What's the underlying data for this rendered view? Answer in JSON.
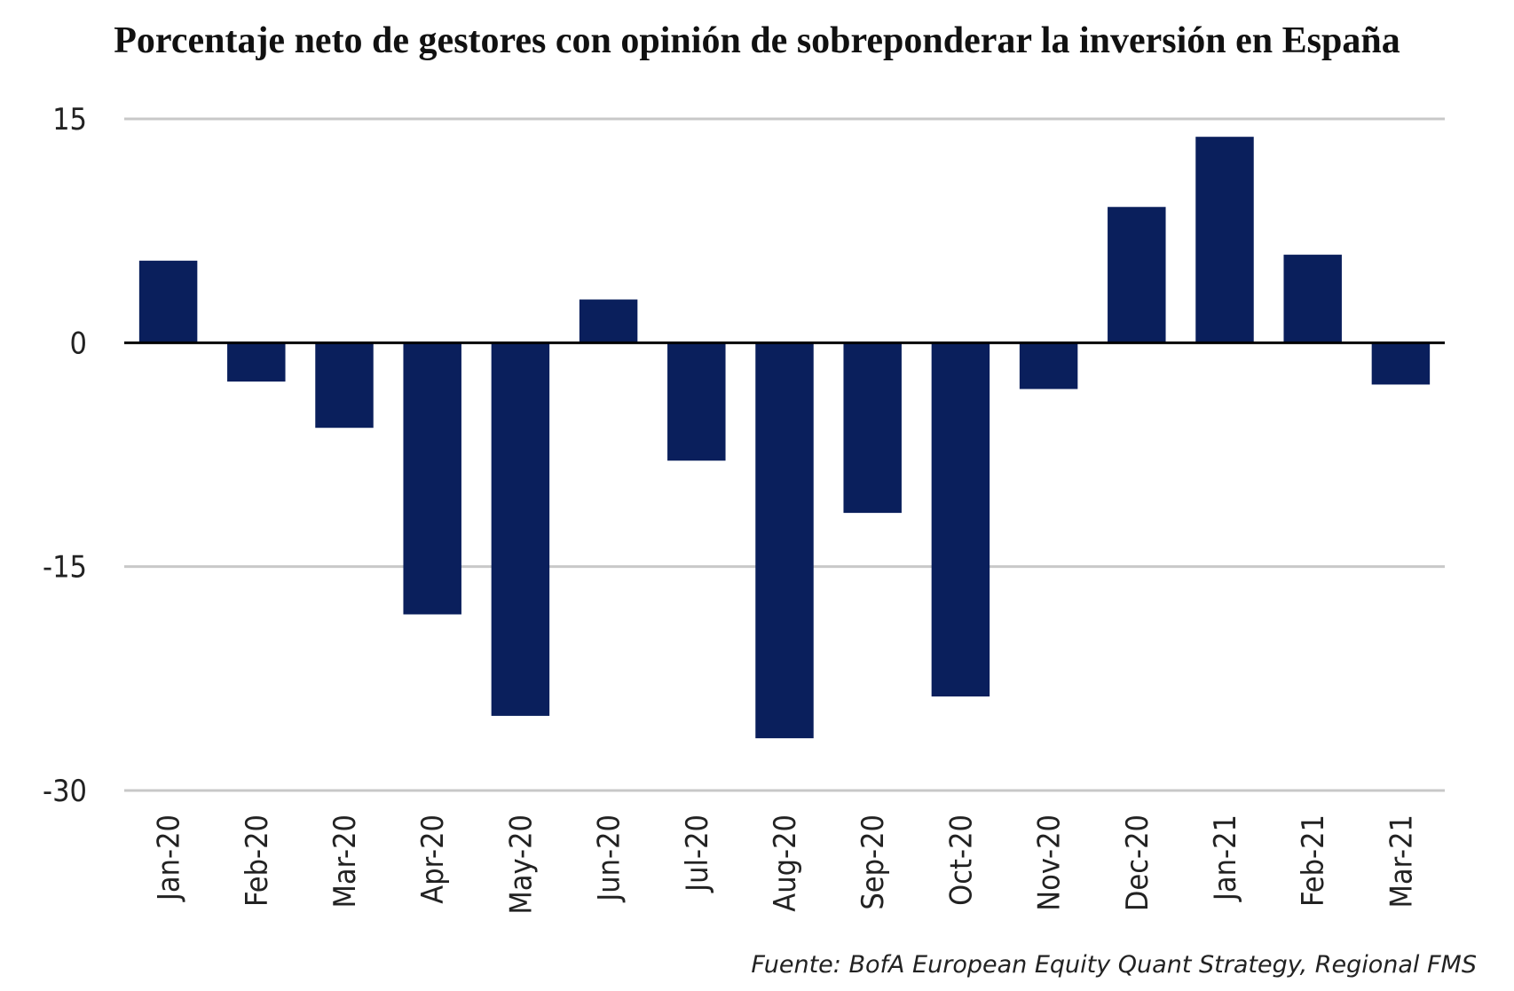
{
  "chart_data": {
    "type": "bar",
    "title": "Porcentaje neto de gestores con opinión de sobreponderar la inversión en España",
    "categories": [
      "Jan-20",
      "Feb-20",
      "Mar-20",
      "Apr-20",
      "May-20",
      "Jun-20",
      "Jul-20",
      "Aug-20",
      "Sep-20",
      "Oct-20",
      "Nov-20",
      "Dec-20",
      "Jan-21",
      "Feb-21",
      "Mar-21"
    ],
    "values": [
      5.5,
      -2.6,
      -5.7,
      -18.2,
      -25.0,
      2.9,
      -7.9,
      -26.5,
      -11.4,
      -23.7,
      -3.1,
      9.1,
      13.8,
      5.9,
      -2.8
    ],
    "ylim": [
      -30,
      15
    ],
    "yticks": [
      "15",
      "0",
      "-15",
      "-30"
    ],
    "xlabel": "",
    "ylabel": "",
    "grid": true,
    "bar_color": "#0a1f5c",
    "source": "Fuente: BofA European Equity Quant Strategy, Regional FMS"
  }
}
